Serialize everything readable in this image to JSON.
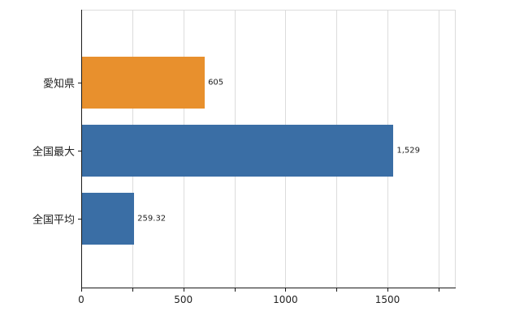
{
  "chart_data": {
    "type": "bar",
    "orientation": "horizontal",
    "title": "",
    "categories": [
      "愛知県",
      "全国最大",
      "全国平均"
    ],
    "values": [
      605,
      1529,
      259.32
    ],
    "value_labels": [
      "605",
      "1,529",
      "259.32"
    ],
    "series_colors": [
      "#e8902d",
      "#3a6ea5",
      "#3a6ea5"
    ],
    "x_ticks": [
      "0",
      "500",
      "1000",
      "1500"
    ],
    "x_tick_values": [
      0,
      500,
      1000,
      1500
    ],
    "xlim": [
      0,
      1830
    ],
    "grid_interval": 250,
    "grid": true,
    "legend": "none",
    "xlabel": "",
    "ylabel": ""
  },
  "colors": {
    "axis": "#1a1a1a",
    "grid": "#dcdcdc",
    "background": "#ffffff",
    "label": "#222222",
    "bar_orange": "#e8902d",
    "bar_blue": "#3a6ea5"
  }
}
